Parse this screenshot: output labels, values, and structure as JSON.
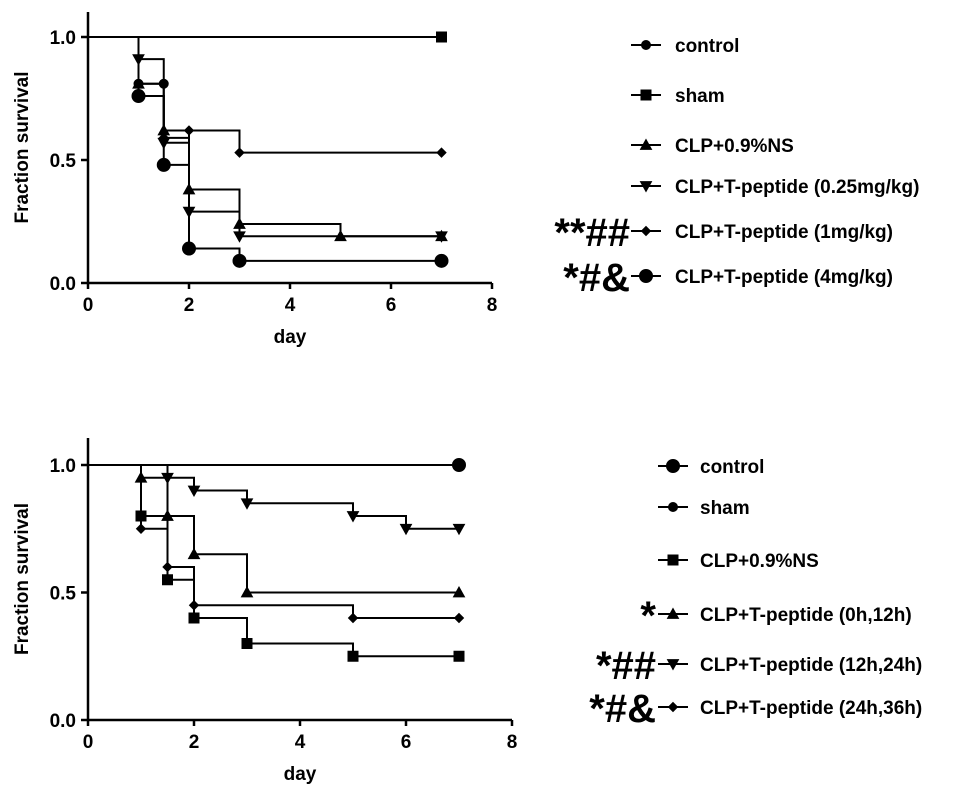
{
  "chart_data": [
    {
      "type": "line",
      "subtype": "kaplan-meier-step",
      "title": "",
      "xlabel": "day",
      "ylabel": "Fraction survival",
      "xlim": [
        0,
        8
      ],
      "ylim": [
        0,
        1.0
      ],
      "x_ticks": [
        "0",
        "2",
        "4",
        "6",
        "8"
      ],
      "y_ticks": [
        "0.0",
        "0.5",
        "1.0"
      ],
      "legend_position": "right",
      "grid": false,
      "series": [
        {
          "name": "control",
          "marker": "circle",
          "significance": "",
          "points": [
            [
              0,
              1.0
            ],
            [
              1,
              0.81
            ],
            [
              1.5,
              0.81
            ]
          ]
        },
        {
          "name": "sham",
          "marker": "square",
          "significance": "",
          "points": [
            [
              0,
              1.0
            ],
            [
              7,
              1.0
            ]
          ]
        },
        {
          "name": "CLP+0.9%NS",
          "marker": "triangle-up",
          "significance": "",
          "points": [
            [
              0,
              1.0
            ],
            [
              1,
              0.81
            ],
            [
              1.5,
              0.62
            ],
            [
              2,
              0.38
            ],
            [
              3,
              0.24
            ],
            [
              5,
              0.19
            ],
            [
              7,
              0.19
            ]
          ]
        },
        {
          "name": "CLP+T-peptide (0.25mg/kg)",
          "marker": "triangle-down",
          "significance": "",
          "points": [
            [
              0,
              1.0
            ],
            [
              1,
              0.91
            ],
            [
              1.5,
              0.57
            ],
            [
              2,
              0.29
            ],
            [
              3,
              0.19
            ],
            [
              7,
              0.19
            ]
          ]
        },
        {
          "name": "CLP+T-peptide (1mg/kg)",
          "marker": "diamond",
          "significance": "**##",
          "points": [
            [
              0,
              1.0
            ],
            [
              1,
              0.76
            ],
            [
              1.5,
              0.59
            ],
            [
              2,
              0.62
            ],
            [
              3,
              0.53
            ],
            [
              7,
              0.53
            ]
          ]
        },
        {
          "name": "CLP+T-peptide (4mg/kg)",
          "marker": "circle-large",
          "significance": "*#&",
          "points": [
            [
              0,
              1.0
            ],
            [
              1,
              0.76
            ],
            [
              1.5,
              0.48
            ],
            [
              2,
              0.14
            ],
            [
              3,
              0.09
            ],
            [
              7,
              0.09
            ]
          ]
        }
      ]
    },
    {
      "type": "line",
      "subtype": "kaplan-meier-step",
      "title": "",
      "xlabel": "day",
      "ylabel": "Fraction survival",
      "xlim": [
        0,
        8
      ],
      "ylim": [
        0,
        1.0
      ],
      "x_ticks": [
        "0",
        "2",
        "4",
        "6",
        "8"
      ],
      "y_ticks": [
        "0.0",
        "0.5",
        "1.0"
      ],
      "legend_position": "right",
      "grid": false,
      "series": [
        {
          "name": "control",
          "marker": "circle-large",
          "significance": "",
          "points": [
            [
              0,
              1.0
            ],
            [
              7,
              1.0
            ]
          ]
        },
        {
          "name": "sham",
          "marker": "circle",
          "significance": "",
          "points": [
            [
              0,
              1.0
            ],
            [
              7,
              1.0
            ]
          ]
        },
        {
          "name": "CLP+0.9%NS",
          "marker": "square",
          "significance": "",
          "points": [
            [
              0,
              1.0
            ],
            [
              1,
              0.8
            ],
            [
              1.5,
              0.55
            ],
            [
              2,
              0.4
            ],
            [
              3,
              0.3
            ],
            [
              5,
              0.25
            ],
            [
              7,
              0.25
            ]
          ]
        },
        {
          "name": "CLP+T-peptide (0h,12h)",
          "marker": "triangle-up",
          "significance": "*",
          "points": [
            [
              0,
              1.0
            ],
            [
              1,
              0.95
            ],
            [
              1.5,
              0.8
            ],
            [
              2,
              0.65
            ],
            [
              3,
              0.5
            ],
            [
              7,
              0.5
            ]
          ]
        },
        {
          "name": "CLP+T-peptide (12h,24h)",
          "marker": "triangle-down",
          "significance": "*##",
          "points": [
            [
              0,
              1.0
            ],
            [
              1.5,
              0.95
            ],
            [
              2,
              0.9
            ],
            [
              3,
              0.85
            ],
            [
              5,
              0.8
            ],
            [
              6,
              0.75
            ],
            [
              7,
              0.75
            ]
          ]
        },
        {
          "name": "CLP+T-peptide (24h,36h)",
          "marker": "diamond",
          "significance": "*#&",
          "points": [
            [
              0,
              1.0
            ],
            [
              1,
              0.75
            ],
            [
              1.5,
              0.6
            ],
            [
              2,
              0.45
            ],
            [
              5,
              0.4
            ],
            [
              7,
              0.4
            ]
          ]
        }
      ]
    }
  ]
}
